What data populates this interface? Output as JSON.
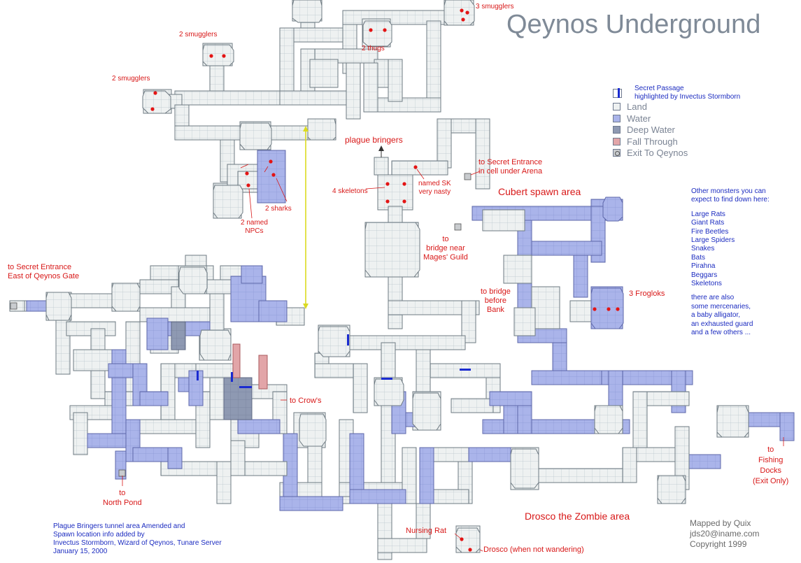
{
  "title": "Qeynos Underground",
  "legend": {
    "secret_passage": "Secret Passage\nhighlighted by Invectus Stormborn",
    "items": [
      {
        "label": "Land",
        "color": "#eef1f1"
      },
      {
        "label": "Water",
        "color": "#aab4ea"
      },
      {
        "label": "Deep Water",
        "color": "#8e99b2"
      },
      {
        "label": "Fall Through",
        "color": "#e2a5a8"
      },
      {
        "label": "Exit To Qeynos",
        "color": "#c9cccf"
      }
    ]
  },
  "colors": {
    "land": "#eef1f1",
    "grid": "#b9c5cc",
    "water": "#aab4ea",
    "deep": "#8e99b2",
    "fall": "#e2a5a8",
    "red": "#d81818",
    "blue": "#1c2cc0",
    "secret": "#1a2bd0",
    "yellow": "#dada20"
  },
  "labels": {
    "smugglers_top": "3 smugglers",
    "thugs": "2 thugs",
    "smugglers_a": "2 smugglers",
    "smugglers_b": "2 smugglers",
    "plague_bringers": "plague bringers",
    "secret_arena": "to Secret Entrance\nin cell under Arena",
    "named_sk": "named SK\nvery nasty",
    "skeletons": "4 skeletons",
    "sharks": "2 sharks",
    "named_npcs": "2 named\nNPCs",
    "cubert": "Cubert spawn area",
    "mages_guild": "to\nbridge near\nMages' Guild",
    "secret_gate": "to Secret Entrance\nEast of Qeynos Gate",
    "bridge_bank": "to bridge\nbefore\nBank",
    "froglok": "3 Frogloks",
    "crows": "to Crow's",
    "fishing_docks": "to\nFishing\nDocks\n(Exit Only)",
    "north_pond": "to\nNorth Pond",
    "drosco_area": "Drosco the Zombie area",
    "nursing_rat": "Nursing Rat",
    "drosco": "Drosco (when not wandering)",
    "credits_left": "Plague Bringers tunnel area Amended and\nSpawn location info added by\nInvectus Stormborn, Wizard of Qeynos, Tunare Server\nJanuary 15, 2000",
    "credits_right": "Mapped by Quix\njds20@iname.com\nCopyright 1999"
  },
  "monsters": {
    "intro": "Other monsters you can\nexpect to find down here:",
    "list": [
      "Large Rats",
      "Giant Rats",
      "Fire Beetles",
      "Large Spiders",
      "Snakes",
      "Bats",
      "Pirahna",
      "Beggars",
      "Skeletons"
    ],
    "outro": "there are also\nsome mercenaries,\na baby alligator,\nan exhausted guard\nand a few others ..."
  }
}
